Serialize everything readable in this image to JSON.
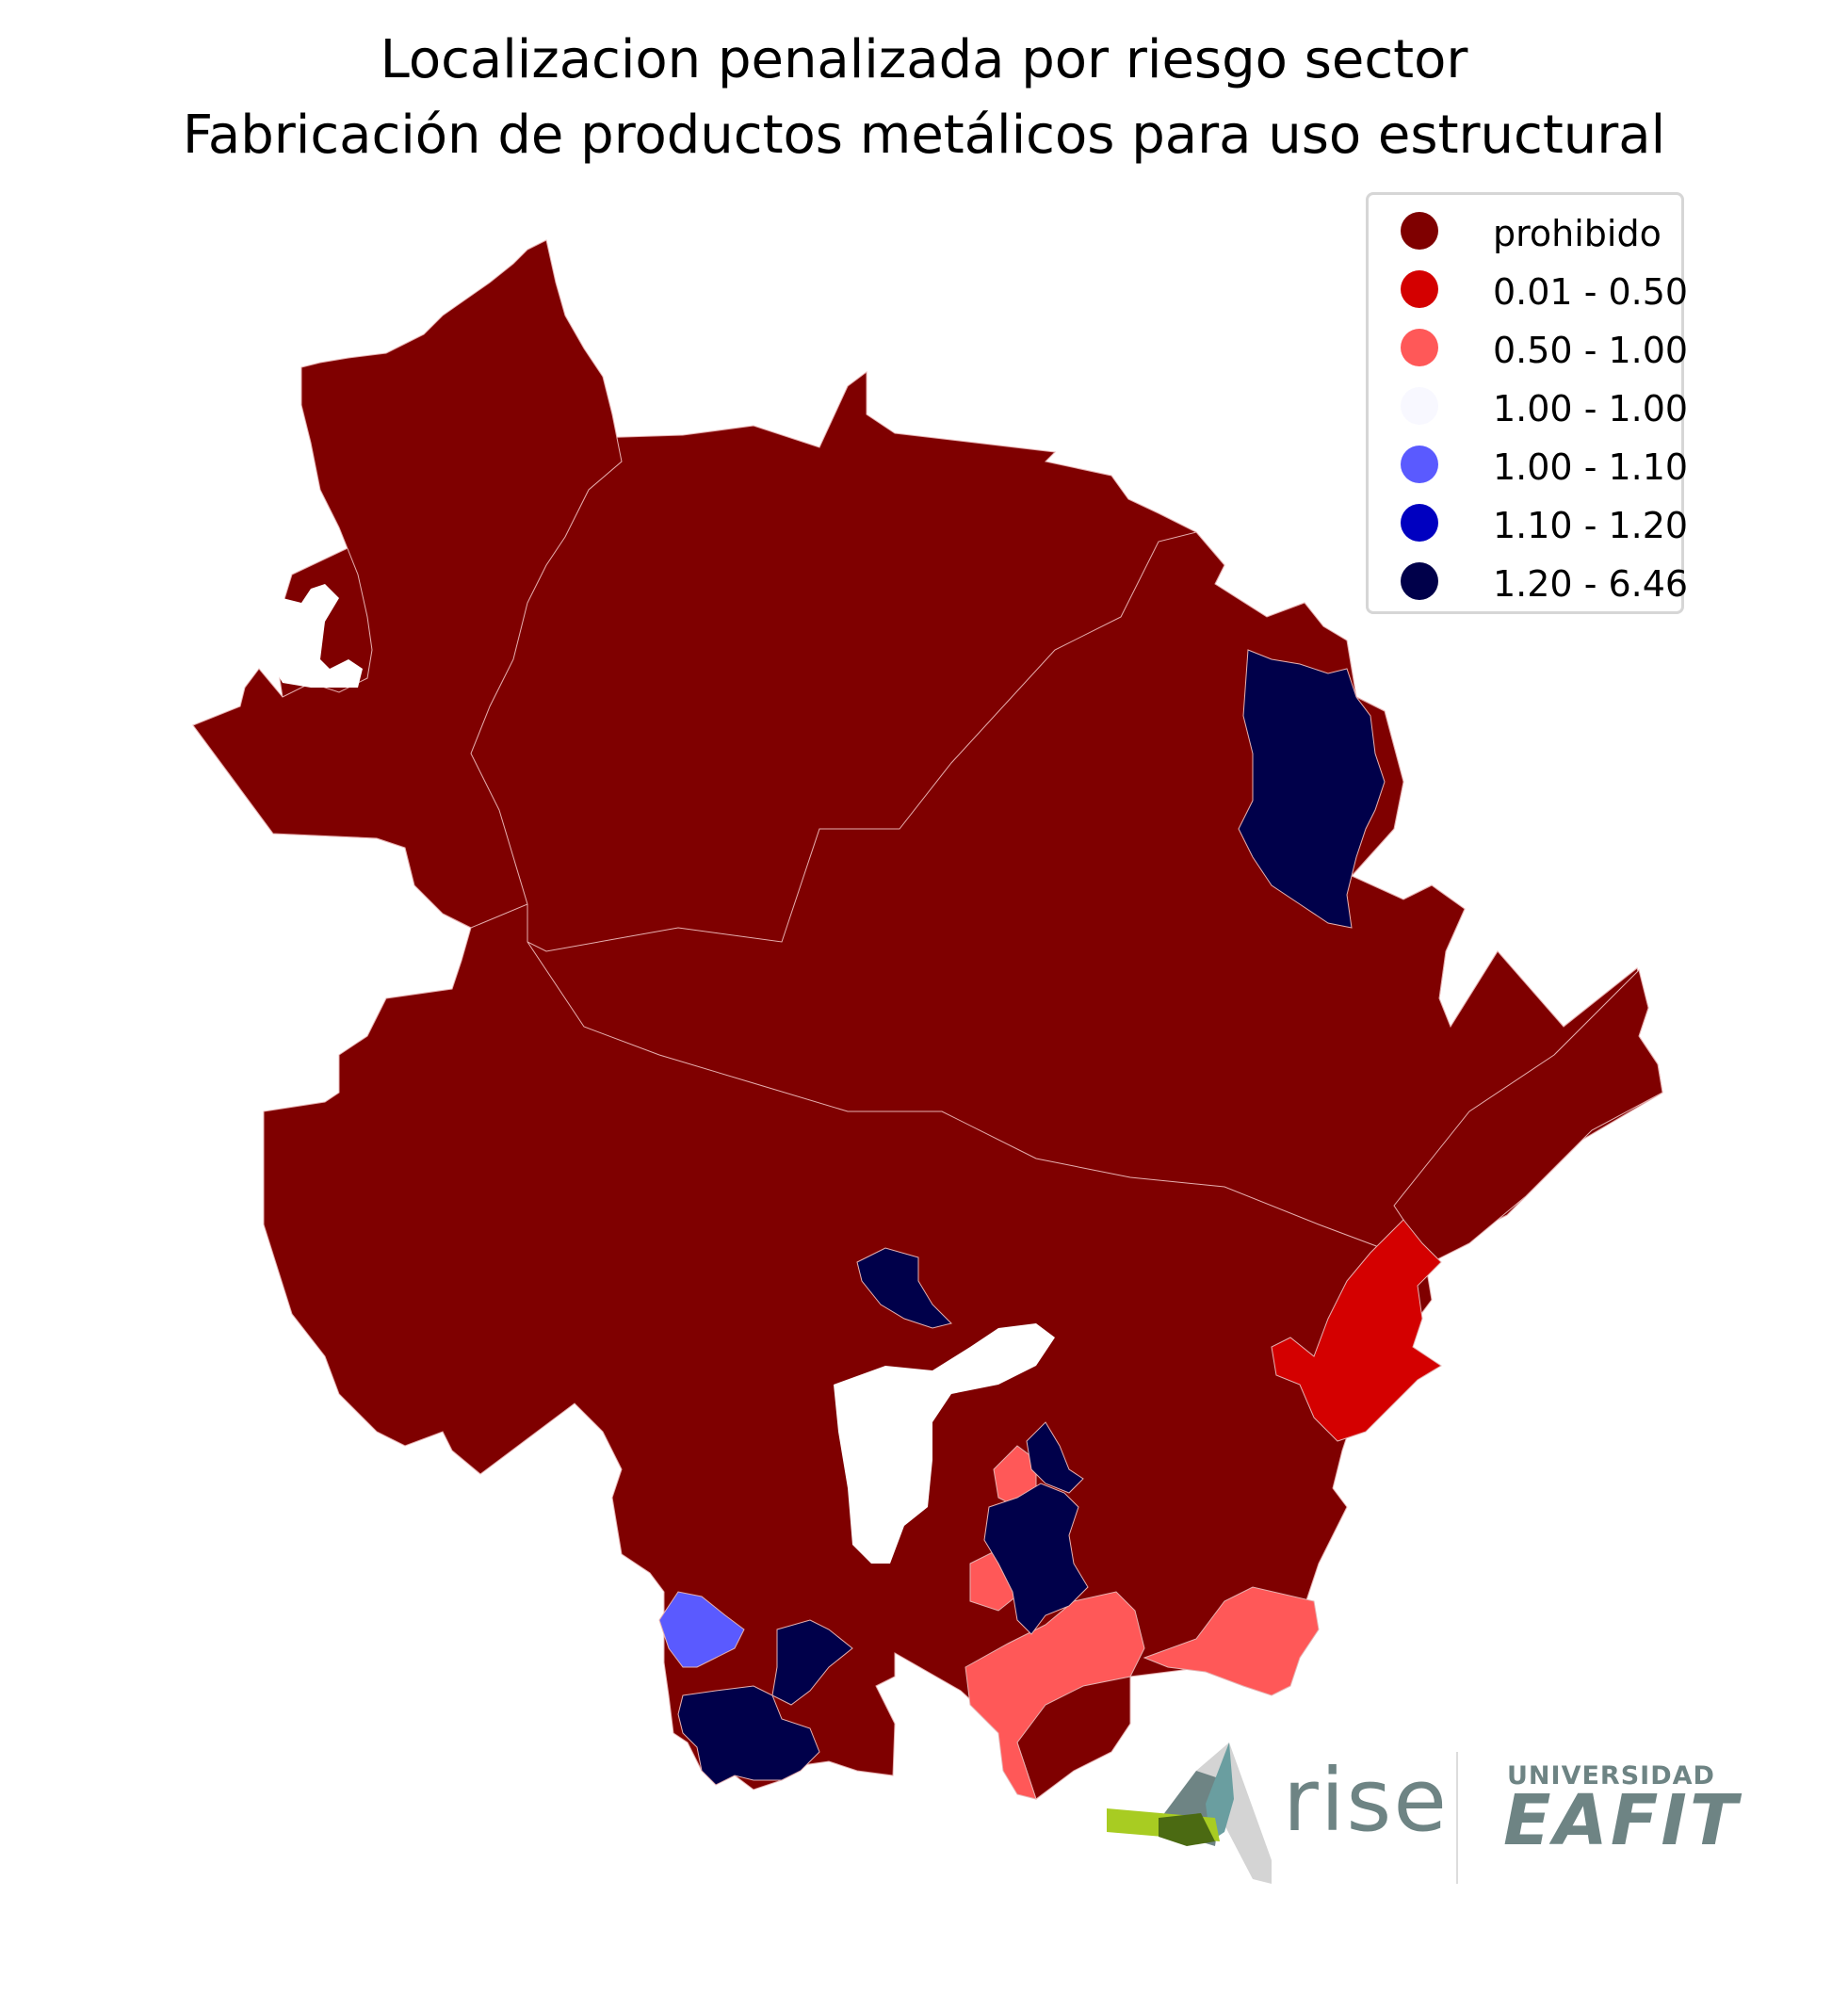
{
  "title": {
    "line1": "Localizacion penalizada por riesgo sector",
    "line2": "Fabricación de productos metálicos para uso estructural"
  },
  "legend": {
    "items": [
      {
        "label": "prohibido",
        "color": "#7f0000"
      },
      {
        "label": "0.01 - 0.50",
        "color": "#d40000"
      },
      {
        "label": "0.50 - 1.00",
        "color": "#ff5858"
      },
      {
        "label": "1.00 - 1.00",
        "color": "#f8f8ff"
      },
      {
        "label": "1.00 - 1.10",
        "color": "#5a5aff"
      },
      {
        "label": "1.10 - 1.20",
        "color": "#0000c0"
      },
      {
        "label": "1.20 - 6.46",
        "color": "#00004a"
      }
    ]
  },
  "logos": {
    "rise": "rise",
    "university_top": "UNIVERSIDAD",
    "university_main": "EAFIT"
  }
}
